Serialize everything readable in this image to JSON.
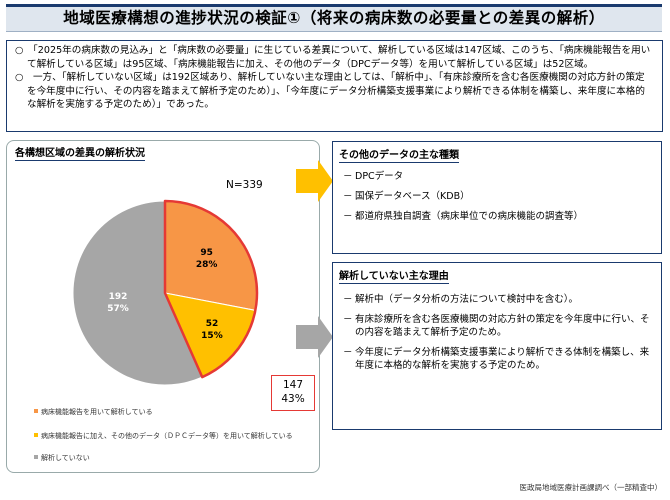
{
  "title": "地域医療構想の進捗状況の検証①（将来の病床数の必要量との差異の解析）",
  "summary": {
    "items": [
      {
        "bullet": "○",
        "text": "「2025年の病床数の見込み」と「病床数の必要量」に生じている差異について、解析している区域は147区域、このうち、「病床機能報告を用いて解析している区域」は95区域、「病床機能報告に加え、その他のデータ（DPCデータ等）を用いて解析している区域」は52区域。"
      },
      {
        "bullet": "○",
        "text": "一方、「解析していない区域」は192区域あり、解析していない主な理由としては、「解析中」、「有床診療所を含む各医療機関の対応方針の策定を今年度中に行い、その内容を踏まえて解析予定のため）」、「今年度にデータ分析構築支援事業により解析できる体制を構築し、来年度に本格的な解析を実施する予定のため）」であった。"
      }
    ]
  },
  "left_panel": {
    "heading": "各構想区域の差異の解析状況",
    "n_label": "N=339",
    "callout": {
      "count": "147",
      "pct": "43%"
    }
  },
  "chart_data": {
    "type": "pie",
    "total_label": "N=339",
    "slices": [
      {
        "label": "病床機能報告を用いて解析している",
        "value": 95,
        "pct": "28%",
        "value_text": "95",
        "color": "#f79646"
      },
      {
        "label": "病床機能報告に加え、その他のデータ（ＤＰＣデータ等）を用いて解析している",
        "value": 52,
        "pct": "15%",
        "value_text": "52",
        "color": "#ffc000"
      },
      {
        "label": "解析していない",
        "value": 192,
        "pct": "57%",
        "value_text": "192",
        "color": "#a6a6a6"
      }
    ],
    "highlight_color": "#e53935"
  },
  "other_data": {
    "heading": "その他のデータの主な種類",
    "items": [
      "DPCデータ",
      "国保データベース（KDB）",
      "都道府県独自調査（病床単位での病床機能の調査等）"
    ]
  },
  "not_analyzed": {
    "heading": "解析していない主な理由",
    "items": [
      "解析中（データ分析の方法について検討中を含む）。",
      "有床診療所を含む各医療機関の対応方針の策定を今年度中に行い、その内容を踏まえて解析予定のため。",
      "今年度にデータ分析構築支援事業により解析できる体制を構築し、来年度に本格的な解析を実施する予定のため。"
    ],
    "dash": "－"
  },
  "source": "医政局地域医療計画課調べ（一部精査中）"
}
